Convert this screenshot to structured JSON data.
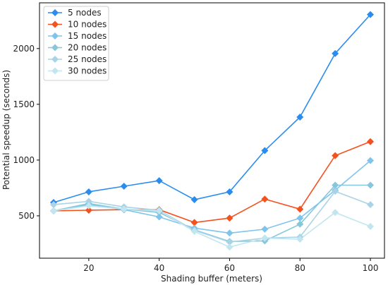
{
  "chart_data": {
    "type": "line",
    "title": "",
    "xlabel": "Shading buffer (meters)",
    "ylabel": "Potential speedup (seconds)",
    "xlim": [
      6,
      104
    ],
    "ylim": [
      120,
      2410
    ],
    "xticks": [
      20,
      40,
      60,
      80,
      100
    ],
    "yticks": [
      500,
      1000,
      1500,
      2000
    ],
    "legend_position": "top-left",
    "grid": false,
    "x": [
      10,
      20,
      30,
      40,
      50,
      60,
      70,
      80,
      90,
      100
    ],
    "series": [
      {
        "name": "5 nodes",
        "color": "#2b8cef",
        "marker": "diamond",
        "values": [
          620,
          715,
          765,
          815,
          645,
          715,
          1085,
          1385,
          1955,
          2305
        ]
      },
      {
        "name": "10 nodes",
        "color": "#f4511e",
        "marker": "diamond",
        "values": [
          545,
          550,
          555,
          555,
          440,
          480,
          650,
          560,
          1040,
          1165
        ]
      },
      {
        "name": "15 nodes",
        "color": "#7ec4ec",
        "marker": "diamond",
        "values": [
          545,
          600,
          555,
          490,
          390,
          345,
          380,
          480,
          730,
          995
        ]
      },
      {
        "name": "20 nodes",
        "color": "#86c7db",
        "marker": "diamond",
        "values": [
          545,
          610,
          560,
          530,
          375,
          270,
          275,
          425,
          775,
          775
        ]
      },
      {
        "name": "25 nodes",
        "color": "#a9d4e6",
        "marker": "diamond",
        "values": [
          600,
          630,
          580,
          550,
          370,
          265,
          300,
          310,
          720,
          600
        ]
      },
      {
        "name": "30 nodes",
        "color": "#c2e6f0",
        "marker": "diamond",
        "values": [
          545,
          590,
          560,
          545,
          360,
          220,
          300,
          290,
          530,
          405
        ]
      }
    ]
  }
}
